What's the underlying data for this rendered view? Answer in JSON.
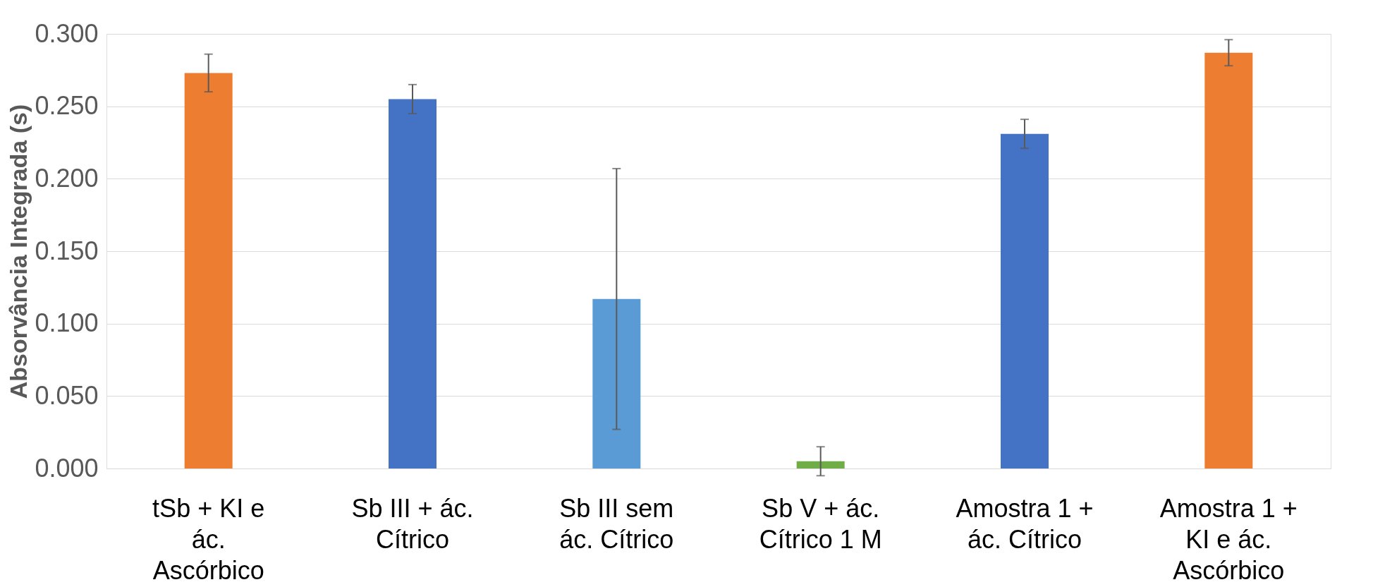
{
  "chart_data": {
    "type": "bar",
    "ylabel": "Absorvância Integrada (s)",
    "categories": [
      "tSb + KI e ác. Ascórbico",
      "Sb III + ác. Cítrico",
      "Sb III sem ác. Cítrico",
      "Sb V + ác. Cítrico 1 M",
      "Amostra 1 + ác. Cítrico",
      "Amostra 1 + KI e ác. Ascórbico"
    ],
    "values": [
      0.273,
      0.255,
      0.117,
      0.005,
      0.231,
      0.287
    ],
    "errors": [
      0.013,
      0.01,
      0.09,
      0.01,
      0.01,
      0.009
    ],
    "colors": [
      "#ed7d31",
      "#4472c4",
      "#5b9bd5",
      "#70ad47",
      "#4472c4",
      "#ed7d31"
    ],
    "ylim": [
      0,
      0.3
    ],
    "yticks": [
      {
        "value": 0,
        "label": "0.000"
      },
      {
        "value": 0.05,
        "label": "0.050"
      },
      {
        "value": 0.1,
        "label": "0.100"
      },
      {
        "value": 0.15,
        "label": "0.150"
      },
      {
        "value": 0.2,
        "label": "0.200"
      },
      {
        "value": 0.25,
        "label": "0.250"
      },
      {
        "value": 0.3,
        "label": "0.300"
      }
    ],
    "grid": "y"
  }
}
